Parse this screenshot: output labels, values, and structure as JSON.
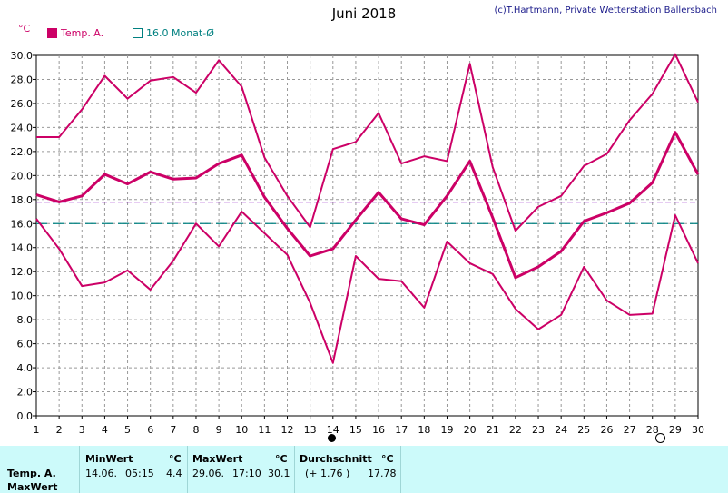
{
  "header": {
    "title": "Juni 2018",
    "credit": "(c)T.Hartmann, Private Wetterstation Ballersbach",
    "unit": "°C"
  },
  "legend": {
    "series_label": "Temp. A.",
    "mean_label": "16.0 Monat-Ø"
  },
  "colors": {
    "series": "#cc0066",
    "month_mean": "#008080",
    "average_line": "#9933cc",
    "grid": "#999999"
  },
  "chart_data": {
    "type": "line",
    "x": [
      1,
      2,
      3,
      4,
      5,
      6,
      7,
      8,
      9,
      10,
      11,
      12,
      13,
      14,
      15,
      16,
      17,
      18,
      19,
      20,
      21,
      22,
      23,
      24,
      25,
      26,
      27,
      28,
      29,
      30
    ],
    "ylim": [
      0,
      30
    ],
    "yticks": [
      "0.0",
      "2.0",
      "4.0",
      "6.0",
      "8.0",
      "10.0",
      "12.0",
      "14.0",
      "16.0",
      "18.0",
      "20.0",
      "22.0",
      "24.0",
      "26.0",
      "28.0",
      "30.0"
    ],
    "series": [
      {
        "values": [
          23.2,
          23.2,
          25.5,
          28.3,
          26.4,
          27.9,
          28.2,
          26.9,
          29.6,
          27.4,
          21.5,
          18.3,
          15.7,
          22.2,
          22.8,
          25.2,
          21.0,
          21.6,
          21.2,
          29.3,
          20.7,
          15.4,
          17.4,
          18.3,
          20.8,
          21.8,
          24.6,
          26.8,
          30.1,
          26.1
        ]
      },
      {
        "values": [
          18.4,
          17.8,
          18.3,
          20.1,
          19.3,
          20.3,
          19.7,
          19.8,
          21.0,
          21.7,
          18.2,
          15.6,
          13.3,
          13.9,
          16.3,
          18.6,
          16.4,
          15.9,
          18.3,
          21.2,
          16.5,
          11.5,
          12.4,
          13.7,
          16.2,
          16.9,
          17.7,
          19.4,
          23.6,
          20.1
        ]
      },
      {
        "values": [
          16.4,
          13.9,
          10.8,
          11.1,
          12.1,
          10.5,
          12.9,
          16.0,
          14.1,
          17.0,
          15.2,
          13.4,
          9.4,
          4.4,
          13.3,
          11.4,
          11.2,
          9.0,
          14.5,
          12.7,
          11.8,
          8.9,
          7.2,
          8.4,
          12.4,
          9.6,
          8.4,
          8.5,
          16.7,
          12.7
        ]
      }
    ],
    "month_mean": 16.0,
    "average": 17.78,
    "grid": true
  },
  "stats": {
    "row_label_1": "Temp. A.",
    "row_label_2": "MaxWert",
    "min_header": "MinWert",
    "max_header": "MaxWert",
    "avg_header": "Durchschnitt",
    "unit": "°C",
    "min_date": "14.06.",
    "min_time": "05:15",
    "min_value": "4.4",
    "max_date": "29.06.",
    "max_time": "17:10",
    "max_value": "30.1",
    "avg_delta": "(+ 1.76 )",
    "avg_value": "17.78"
  }
}
